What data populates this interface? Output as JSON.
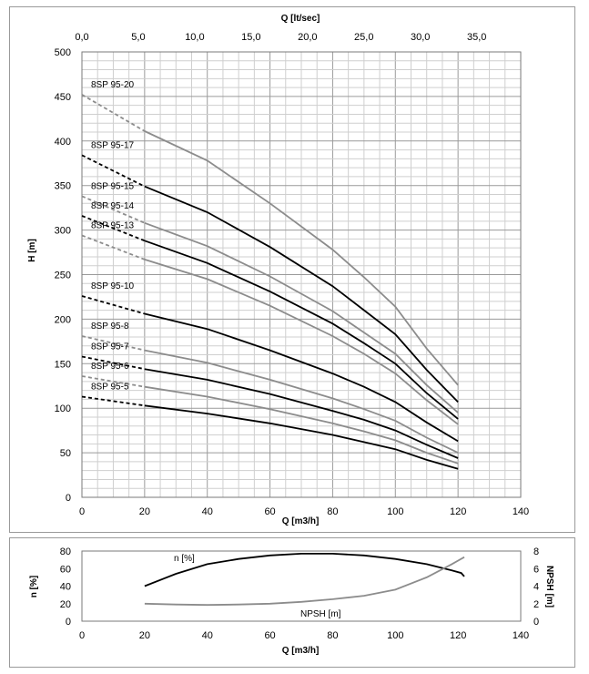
{
  "chart_data": [
    {
      "type": "line",
      "title": "",
      "xlabel": "Q [m3/h]",
      "ylabel": "H [m]",
      "x2label": "Q [lt/sec]",
      "xlim": [
        0,
        140
      ],
      "ylim": [
        0,
        500
      ],
      "x2lim": [
        0,
        38.9
      ],
      "x_ticks": [
        0,
        20,
        40,
        60,
        80,
        100,
        120,
        140
      ],
      "y_ticks": [
        0,
        50,
        100,
        150,
        200,
        250,
        300,
        350,
        400,
        450,
        500
      ],
      "x2_ticks": [
        0,
        5,
        10,
        15,
        20,
        25,
        30,
        35
      ],
      "x2_tick_labels": [
        "0,0",
        "5,0",
        "10,0",
        "15,0",
        "20,0",
        "25,0",
        "30,0",
        "35,0"
      ],
      "grid": true,
      "series": [
        {
          "name": "8SP 95-20",
          "color": "#8c8c8c",
          "dashed_until": 20,
          "x": [
            0,
            20,
            40,
            60,
            80,
            90,
            100,
            110,
            120
          ],
          "y": [
            452,
            411,
            378,
            330,
            278,
            247,
            214,
            167,
            126
          ]
        },
        {
          "name": "8SP 95-17",
          "color": "#000000",
          "dashed_until": 20,
          "x": [
            0,
            20,
            40,
            60,
            80,
            90,
            100,
            110,
            120
          ],
          "y": [
            384,
            349,
            320,
            281,
            237,
            210,
            183,
            143,
            107
          ]
        },
        {
          "name": "8SP 95-15",
          "color": "#8c8c8c",
          "dashed_until": 20,
          "x": [
            0,
            20,
            40,
            60,
            80,
            90,
            100,
            110,
            120
          ],
          "y": [
            338,
            308,
            282,
            248,
            209,
            185,
            161,
            126,
            95
          ]
        },
        {
          "name": "8SP 95-14",
          "color": "#000000",
          "dashed_until": 20,
          "x": [
            0,
            20,
            40,
            60,
            80,
            90,
            100,
            110,
            120
          ],
          "y": [
            316,
            288,
            263,
            231,
            195,
            173,
            150,
            117,
            88
          ]
        },
        {
          "name": "8SP 95-13",
          "color": "#8c8c8c",
          "dashed_until": 20,
          "x": [
            0,
            20,
            40,
            60,
            80,
            90,
            100,
            110,
            120
          ],
          "y": [
            294,
            267,
            245,
            215,
            181,
            161,
            139,
            109,
            82
          ]
        },
        {
          "name": "8SP 95-10",
          "color": "#000000",
          "dashed_until": 20,
          "x": [
            0,
            20,
            40,
            60,
            80,
            90,
            100,
            110,
            120
          ],
          "y": [
            226,
            206,
            189,
            165,
            139,
            124,
            107,
            84,
            63
          ]
        },
        {
          "name": "8SP 95-8",
          "color": "#8c8c8c",
          "dashed_until": 20,
          "x": [
            0,
            20,
            40,
            60,
            80,
            90,
            100,
            110,
            120
          ],
          "y": [
            181,
            165,
            151,
            132,
            111,
            99,
            86,
            67,
            50
          ]
        },
        {
          "name": "8SP 95-7",
          "color": "#000000",
          "dashed_until": 20,
          "x": [
            0,
            20,
            40,
            60,
            80,
            90,
            100,
            110,
            120
          ],
          "y": [
            158,
            144,
            132,
            116,
            97,
            87,
            75,
            59,
            44
          ]
        },
        {
          "name": "8SP 95-6",
          "color": "#8c8c8c",
          "dashed_until": 20,
          "x": [
            0,
            20,
            40,
            60,
            80,
            90,
            100,
            110,
            120
          ],
          "y": [
            136,
            124,
            113,
            99,
            83,
            74,
            64,
            50,
            38
          ]
        },
        {
          "name": "8SP 95-5",
          "color": "#000000",
          "dashed_until": 20,
          "x": [
            0,
            20,
            40,
            60,
            80,
            90,
            100,
            110,
            120
          ],
          "y": [
            113,
            103,
            94,
            83,
            70,
            62,
            54,
            42,
            32
          ]
        }
      ]
    },
    {
      "type": "line",
      "title": "",
      "xlabel": "Q [m3/h]",
      "ylabel": "n [%]",
      "y2label": "NPSH [m]",
      "xlim": [
        0,
        140
      ],
      "ylim": [
        0,
        80
      ],
      "y2lim": [
        0,
        8
      ],
      "x_ticks": [
        0,
        20,
        40,
        60,
        80,
        100,
        120,
        140
      ],
      "y_ticks": [
        0,
        20,
        40,
        60,
        80
      ],
      "y2_ticks": [
        0,
        2,
        4,
        6,
        8
      ],
      "grid": false,
      "series": [
        {
          "name": "n [%]",
          "axis": "left",
          "color": "#000000",
          "x": [
            20,
            30,
            40,
            50,
            60,
            70,
            80,
            90,
            100,
            110,
            118,
            121,
            122
          ],
          "y": [
            40,
            54,
            65,
            71,
            75,
            77,
            77,
            75,
            71,
            65,
            58,
            55,
            51
          ]
        },
        {
          "name": "NPSH [m]",
          "axis": "right",
          "color": "#8c8c8c",
          "x": [
            20,
            30,
            40,
            50,
            60,
            70,
            80,
            90,
            100,
            110,
            118,
            122
          ],
          "y": [
            2.0,
            1.9,
            1.85,
            1.9,
            2.0,
            2.2,
            2.5,
            2.9,
            3.6,
            5.0,
            6.5,
            7.3
          ]
        }
      ]
    }
  ]
}
